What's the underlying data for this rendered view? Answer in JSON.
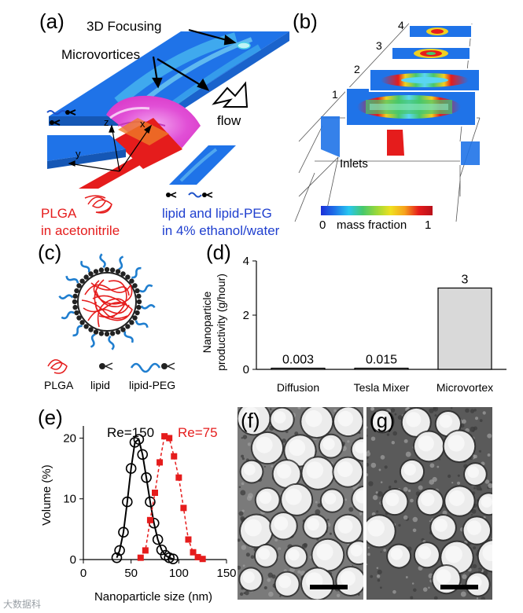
{
  "panels": {
    "a": {
      "label": "(a)",
      "focusing": "3D Focusing",
      "microvortices": "Microvortices",
      "flow": "flow",
      "axis_z": "z",
      "axis_x": "x",
      "axis_y": "y",
      "red_stream": [
        "PLGA",
        "in acetonitrile"
      ],
      "blue_stream": [
        "lipid and lipid-PEG",
        "in 4% ethanol/water"
      ],
      "colors": {
        "channel": "#1a6ee6",
        "polymer": "#e51c1c",
        "mixing": "#e64fd8"
      }
    },
    "b": {
      "label": "(b)",
      "slices": [
        "1",
        "2",
        "3",
        "4"
      ],
      "inlets": "Inlets",
      "colorbar": {
        "min": "0",
        "max": "1",
        "label": "mass fraction"
      }
    },
    "c": {
      "label": "(c)",
      "legend": [
        "PLGA",
        "lipid",
        "lipid-PEG"
      ]
    },
    "d": {
      "label": "(d)",
      "ylabel": [
        "Nanoparticle",
        "productivity (g/hour)"
      ]
    },
    "e": {
      "label": "(e)",
      "ylabel": "Volume (%)",
      "xlabel": "Nanoparticle size (nm)"
    },
    "f": {
      "label": "(f)"
    },
    "g": {
      "label": "(g)"
    }
  },
  "watermark": "大数据科",
  "chart_data": [
    {
      "id": "d",
      "type": "bar",
      "categories": [
        "Diffusion",
        "Tesla Mixer",
        "Microvortex"
      ],
      "values": [
        0.003,
        0.015,
        3
      ],
      "value_labels": [
        "0.003",
        "0.015",
        "3"
      ],
      "ylabel": "Nanoparticle productivity (g/hour)",
      "ylim": [
        0,
        4
      ],
      "yticks": [
        0,
        2,
        4
      ],
      "grid": false,
      "bar_color": "#d9d9d9"
    },
    {
      "id": "e",
      "type": "line",
      "xlabel": "Nanoparticle size (nm)",
      "ylabel": "Volume (%)",
      "xlim": [
        0,
        150
      ],
      "ylim": [
        0,
        22
      ],
      "xticks": [
        0,
        50,
        100,
        150
      ],
      "yticks": [
        0,
        10,
        20
      ],
      "grid": false,
      "series": [
        {
          "name": "Re=150",
          "color": "#000000",
          "marker": "circle",
          "x": [
            35,
            38,
            42,
            46,
            50,
            54,
            58,
            62,
            66,
            70,
            74,
            78,
            82,
            86,
            90,
            94
          ],
          "y": [
            0.3,
            1.5,
            4.5,
            9.5,
            15,
            19.3,
            19.8,
            17.3,
            13.5,
            9.5,
            6,
            3.3,
            1.6,
            0.7,
            0.3,
            0.1
          ]
        },
        {
          "name": "Re=75",
          "color": "#e51c1c",
          "marker": "square",
          "x": [
            60,
            65,
            70,
            75,
            80,
            85,
            90,
            95,
            100,
            105,
            110,
            115,
            120,
            125
          ],
          "y": [
            0.3,
            1.5,
            6.5,
            11,
            16,
            20.3,
            20,
            17,
            13.5,
            8.5,
            3.3,
            1.2,
            0.4,
            0.1
          ]
        }
      ]
    }
  ]
}
